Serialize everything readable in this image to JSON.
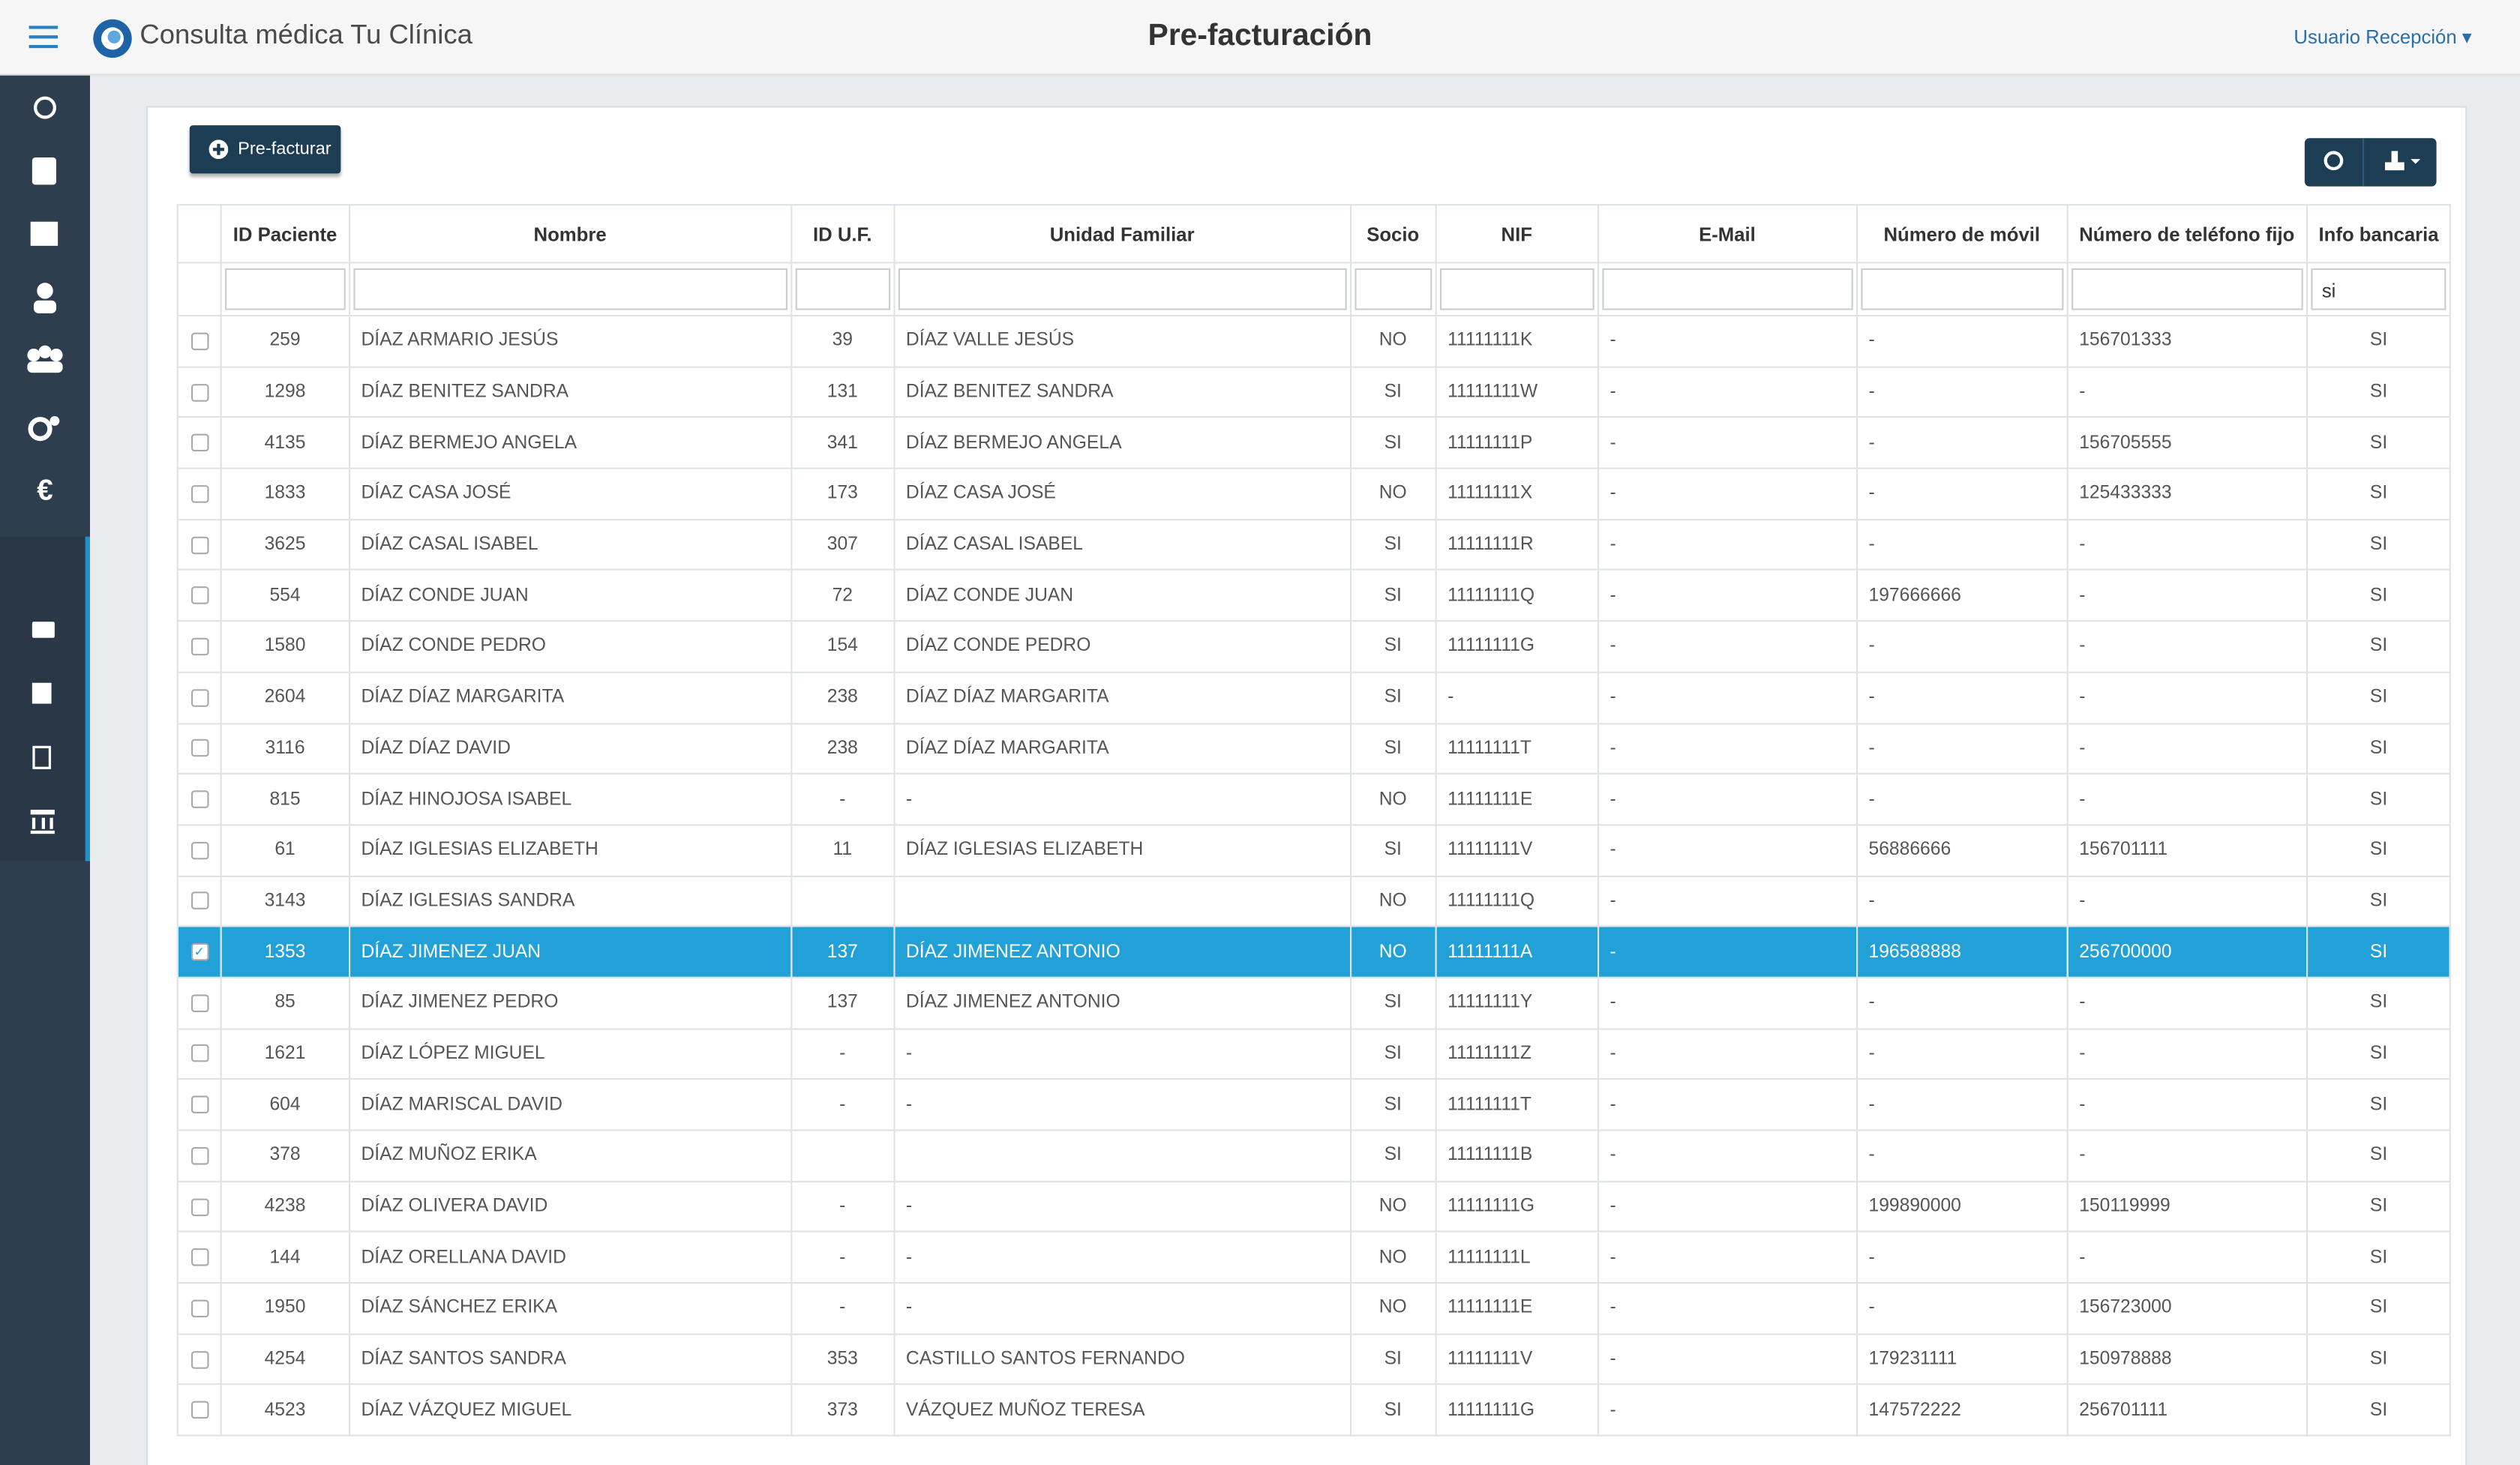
{
  "header": {
    "app_name": "Consulta médica Tu Clínica",
    "title": "Pre-facturación",
    "user": "Usuario Recepción"
  },
  "sidebar": {
    "section": "€"
  },
  "toolbar": {
    "button": "Pre-facturar"
  },
  "table": {
    "columns": [
      "ID Paciente",
      "Nombre",
      "ID U.F.",
      "Unidad Familiar",
      "Socio",
      "NIF",
      "E-Mail",
      "Número de móvil",
      "Número de teléfono fijo",
      "Info bancaria"
    ],
    "filter_value": "si",
    "rows": [
      {
        "cells": [
          259,
          "DÍAZ ARMARIO JESÚS",
          39,
          "DÍAZ VALLE JESÚS",
          "NO",
          "11111111K",
          "-",
          "-",
          "156701333",
          "SI"
        ]
      },
      {
        "cells": [
          1298,
          "DÍAZ BENITEZ SANDRA",
          131,
          "DÍAZ BENITEZ SANDRA",
          "SI",
          "11111111W",
          "-",
          "-",
          "-",
          "SI"
        ]
      },
      {
        "cells": [
          4135,
          "DÍAZ BERMEJO ANGELA",
          341,
          "DÍAZ BERMEJO ANGELA",
          "SI",
          "11111111P",
          "-",
          "-",
          "156705555",
          "SI"
        ]
      },
      {
        "cells": [
          1833,
          "DÍAZ CASA JOSÉ",
          173,
          "DÍAZ CASA JOSÉ",
          "NO",
          "11111111X",
          "-",
          "-",
          "125433333",
          "SI"
        ]
      },
      {
        "cells": [
          3625,
          "DÍAZ CASAL ISABEL",
          307,
          "DÍAZ CASAL ISABEL",
          "SI",
          "11111111R",
          "-",
          "-",
          "-",
          "SI"
        ]
      },
      {
        "cells": [
          554,
          "DÍAZ CONDE JUAN",
          72,
          "DÍAZ CONDE JUAN",
          "SI",
          "11111111Q",
          "-",
          "197666666",
          "-",
          "SI"
        ]
      },
      {
        "cells": [
          1580,
          "DÍAZ CONDE PEDRO",
          154,
          "DÍAZ CONDE PEDRO",
          "SI",
          "11111111G",
          "-",
          "-",
          "-",
          "SI"
        ]
      },
      {
        "cells": [
          2604,
          "DÍAZ DÍAZ MARGARITA",
          238,
          "DÍAZ DÍAZ MARGARITA",
          "SI",
          "-",
          "-",
          "-",
          "-",
          "SI"
        ]
      },
      {
        "cells": [
          3116,
          "DÍAZ DÍAZ DAVID",
          238,
          "DÍAZ DÍAZ MARGARITA",
          "SI",
          "11111111T",
          "-",
          "-",
          "-",
          "SI"
        ]
      },
      {
        "cells": [
          815,
          "DÍAZ HINOJOSA ISABEL",
          "-",
          "-",
          "NO",
          "11111111E",
          "-",
          "-",
          "-",
          "SI"
        ]
      },
      {
        "cells": [
          61,
          "DÍAZ IGLESIAS ELIZABETH",
          11,
          "DÍAZ IGLESIAS ELIZABETH",
          "SI",
          "11111111V",
          "-",
          "56886666",
          "156701111",
          "SI"
        ]
      },
      {
        "cells": [
          3143,
          "DÍAZ IGLESIAS SANDRA",
          null,
          null,
          "NO",
          "11111111Q",
          "-",
          "-",
          "-",
          "SI"
        ]
      },
      {
        "cells": [
          1353,
          "DÍAZ JIMENEZ JUAN",
          137,
          "DÍAZ JIMENEZ ANTONIO",
          "NO",
          "11111111A",
          "-",
          "196588888",
          "256700000",
          "SI"
        ],
        "selected": true
      },
      {
        "cells": [
          85,
          "DÍAZ JIMENEZ PEDRO",
          137,
          "DÍAZ JIMENEZ ANTONIO",
          "SI",
          "11111111Y",
          "-",
          "-",
          "-",
          "SI"
        ]
      },
      {
        "cells": [
          1621,
          "DÍAZ LÓPEZ MIGUEL",
          "-",
          "-",
          "SI",
          "11111111Z",
          "-",
          "-",
          "-",
          "SI"
        ]
      },
      {
        "cells": [
          604,
          "DÍAZ MARISCAL DAVID",
          "-",
          "-",
          "SI",
          "11111111T",
          "-",
          "-",
          "-",
          "SI"
        ]
      },
      {
        "cells": [
          378,
          "DÍAZ MUÑOZ ERIKA",
          null,
          null,
          "SI",
          "11111111B",
          "-",
          "-",
          "-",
          "SI"
        ]
      },
      {
        "cells": [
          4238,
          "DÍAZ OLIVERA DAVID",
          "-",
          "-",
          "NO",
          "11111111G",
          "-",
          "199890000",
          "150119999",
          "SI"
        ]
      },
      {
        "cells": [
          144,
          "DÍAZ ORELLANA DAVID",
          "-",
          "-",
          "NO",
          "11111111L",
          "-",
          "-",
          "-",
          "SI"
        ]
      },
      {
        "cells": [
          1950,
          "DÍAZ SÁNCHEZ ERIKA",
          "-",
          "-",
          "NO",
          "11111111E",
          "-",
          "-",
          "156723000",
          "SI"
        ]
      },
      {
        "cells": [
          4254,
          "DÍAZ SANTOS SANDRA",
          353,
          "CASTILLO SANTOS FERNANDO",
          "SI",
          "11111111V",
          "-",
          "179231111",
          "150978888",
          "SI"
        ]
      },
      {
        "cells": [
          4523,
          "DÍAZ VÁZQUEZ MIGUEL",
          373,
          "VÁZQUEZ MUÑOZ TERESA",
          "SI",
          "11111111G",
          "-",
          "147572222",
          "256701111",
          "SI"
        ]
      }
    ]
  }
}
